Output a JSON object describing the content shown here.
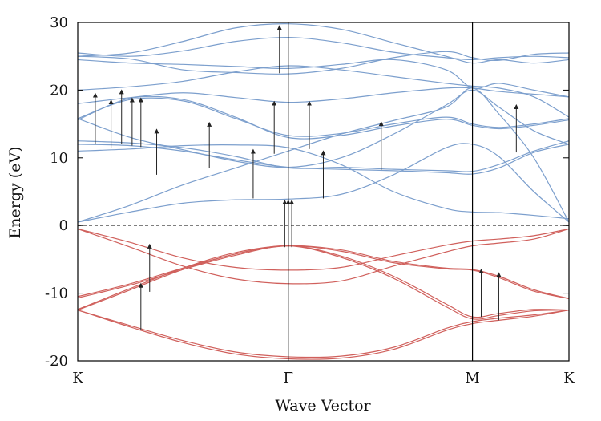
{
  "chart_data": {
    "type": "line",
    "xlabel": "Wave Vector",
    "ylabel": "Energy (eV)",
    "ylim": [
      -20,
      30
    ],
    "yticks": [
      -20,
      -10,
      0,
      10,
      20,
      30
    ],
    "xlim": [
      0,
      2.8
    ],
    "k_points": [
      {
        "label": "K",
        "x": 0
      },
      {
        "label": "Γ",
        "x": 1.2
      },
      {
        "label": "M",
        "x": 2.25
      },
      {
        "label": "K",
        "x": 2.8
      }
    ],
    "fermi_level": 0,
    "grid": false,
    "colors": {
      "conduction": "#7c9fcd",
      "valence": "#d0605c",
      "axis": "#000000",
      "fermi": "#555555",
      "arrow": "#222222"
    },
    "series": [
      {
        "group": "valence",
        "x": [
          0,
          0.3,
          0.6,
          0.9,
          1.2,
          1.5,
          1.8,
          2.1,
          2.25,
          2.4,
          2.6,
          2.8
        ],
        "y": [
          -12.5,
          -14.8,
          -17.0,
          -18.7,
          -19.4,
          -19.3,
          -18.0,
          -15.2,
          -14.2,
          -13.7,
          -13.2,
          -12.5
        ]
      },
      {
        "group": "valence",
        "x": [
          0,
          0.3,
          0.6,
          0.9,
          1.2,
          1.5,
          1.8,
          2.1,
          2.25,
          2.4,
          2.6,
          2.8
        ],
        "y": [
          -12.5,
          -15.0,
          -17.3,
          -19.0,
          -19.7,
          -19.6,
          -18.3,
          -15.5,
          -14.5,
          -14.0,
          -13.4,
          -12.5
        ]
      },
      {
        "group": "valence",
        "x": [
          0,
          0.3,
          0.6,
          0.9,
          1.2,
          1.5,
          1.8,
          2.1,
          2.25,
          2.4,
          2.6,
          2.8
        ],
        "y": [
          -12.5,
          -9.5,
          -6.5,
          -4.2,
          -3.0,
          -3.6,
          -5.3,
          -6.3,
          -6.5,
          -7.5,
          -9.5,
          -10.8
        ]
      },
      {
        "group": "valence",
        "x": [
          0,
          0.3,
          0.6,
          0.9,
          1.2,
          1.5,
          1.8,
          2.1,
          2.25,
          2.4,
          2.6,
          2.8
        ],
        "y": [
          -12.4,
          -9.3,
          -6.3,
          -4.0,
          -3.0,
          -3.8,
          -5.5,
          -6.4,
          -6.6,
          -7.7,
          -9.7,
          -10.8
        ]
      },
      {
        "group": "valence",
        "x": [
          0,
          0.3,
          0.6,
          0.9,
          1.2,
          1.5,
          1.8,
          2.1,
          2.25,
          2.4,
          2.6,
          2.8
        ],
        "y": [
          -10.7,
          -8.8,
          -6.5,
          -4.4,
          -3.0,
          -4.5,
          -7.5,
          -11.6,
          -13.5,
          -13.0,
          -12.4,
          -12.5
        ]
      },
      {
        "group": "valence",
        "x": [
          0,
          0.3,
          0.6,
          0.9,
          1.2,
          1.5,
          1.8,
          2.1,
          2.25,
          2.4,
          2.6,
          2.8
        ],
        "y": [
          -10.5,
          -8.6,
          -6.3,
          -4.2,
          -3.0,
          -4.7,
          -7.8,
          -12.0,
          -13.8,
          -13.3,
          -12.6,
          -12.5
        ]
      },
      {
        "group": "valence",
        "x": [
          0,
          0.3,
          0.6,
          0.9,
          1.2,
          1.5,
          1.8,
          2.1,
          2.25,
          2.4,
          2.6,
          2.8
        ],
        "y": [
          -0.5,
          -2.5,
          -4.8,
          -6.2,
          -6.6,
          -6.2,
          -4.5,
          -2.9,
          -2.3,
          -2.0,
          -1.5,
          -0.5
        ]
      },
      {
        "group": "valence",
        "x": [
          0,
          0.3,
          0.6,
          0.9,
          1.2,
          1.5,
          1.8,
          2.1,
          2.25,
          2.4,
          2.6,
          2.8
        ],
        "y": [
          -0.5,
          -3.2,
          -6.0,
          -7.9,
          -8.6,
          -8.2,
          -6.0,
          -3.9,
          -3.0,
          -2.6,
          -2.0,
          -0.5
        ]
      },
      {
        "group": "conduction",
        "x": [
          0,
          0.3,
          0.6,
          0.9,
          1.2,
          1.5,
          1.8,
          2.1,
          2.25,
          2.4,
          2.6,
          2.8
        ],
        "y": [
          0.5,
          2.0,
          3.3,
          3.8,
          3.9,
          4.6,
          7.5,
          11.5,
          12.0,
          10.2,
          5.0,
          0.5
        ]
      },
      {
        "group": "conduction",
        "x": [
          0,
          0.3,
          0.6,
          0.9,
          1.2,
          1.5,
          1.8,
          2.1,
          2.25,
          2.4,
          2.6,
          2.8
        ],
        "y": [
          0.5,
          3.0,
          6.0,
          8.5,
          11.0,
          13.5,
          15.5,
          17.5,
          20.3,
          16.5,
          10.0,
          0.5
        ]
      },
      {
        "group": "conduction",
        "x": [
          0,
          0.3,
          0.6,
          0.9,
          1.2,
          1.5,
          1.8,
          2.1,
          2.25,
          2.4,
          2.6,
          2.8
        ],
        "y": [
          11.0,
          11.3,
          11.8,
          11.9,
          11.5,
          9.0,
          5.0,
          2.5,
          2.0,
          1.9,
          1.5,
          1.0
        ]
      },
      {
        "group": "conduction",
        "x": [
          0,
          0.3,
          0.6,
          0.9,
          1.2,
          1.5,
          1.8,
          2.1,
          2.25,
          2.4,
          2.6,
          2.8
        ],
        "y": [
          12.0,
          11.8,
          11.0,
          9.7,
          8.6,
          8.3,
          8.1,
          7.8,
          7.6,
          8.5,
          10.8,
          12.0
        ]
      },
      {
        "group": "conduction",
        "x": [
          0,
          0.3,
          0.6,
          0.9,
          1.2,
          1.5,
          1.8,
          2.1,
          2.25,
          2.4,
          2.6,
          2.8
        ],
        "y": [
          12.5,
          12.2,
          11.5,
          10.2,
          8.5,
          8.6,
          8.3,
          8.1,
          8.0,
          9.0,
          11.0,
          12.5
        ]
      },
      {
        "group": "conduction",
        "x": [
          0,
          0.3,
          0.6,
          0.9,
          1.2,
          1.5,
          1.8,
          2.1,
          2.25,
          2.4,
          2.6,
          2.8
        ],
        "y": [
          15.8,
          13.0,
          11.2,
          9.5,
          8.6,
          10.0,
          13.5,
          17.8,
          20.0,
          17.5,
          14.0,
          12.0
        ]
      },
      {
        "group": "conduction",
        "x": [
          0,
          0.3,
          0.6,
          0.9,
          1.2,
          1.5,
          1.8,
          2.1,
          2.25,
          2.4,
          2.6,
          2.8
        ],
        "y": [
          15.8,
          18.6,
          18.4,
          15.8,
          13.3,
          13.6,
          15.0,
          16.0,
          15.0,
          14.5,
          15.0,
          15.8
        ]
      },
      {
        "group": "conduction",
        "x": [
          0,
          0.3,
          0.6,
          0.9,
          1.2,
          1.5,
          1.8,
          2.1,
          2.25,
          2.4,
          2.6,
          2.8
        ],
        "y": [
          15.6,
          18.8,
          18.6,
          16.0,
          13.0,
          13.3,
          14.7,
          15.7,
          14.8,
          14.3,
          14.8,
          15.6
        ]
      },
      {
        "group": "conduction",
        "x": [
          0,
          0.3,
          0.6,
          0.9,
          1.2,
          1.5,
          1.8,
          2.1,
          2.25,
          2.4,
          2.6,
          2.8
        ],
        "y": [
          18.0,
          18.9,
          19.6,
          18.9,
          18.2,
          18.7,
          19.6,
          20.3,
          20.3,
          19.8,
          19.4,
          19.0
        ]
      },
      {
        "group": "conduction",
        "x": [
          0,
          0.3,
          0.6,
          0.9,
          1.2,
          1.5,
          1.8,
          2.1,
          2.25,
          2.4,
          2.6,
          2.8
        ],
        "y": [
          20.0,
          20.5,
          21.3,
          22.7,
          23.6,
          23.0,
          22.0,
          21.0,
          20.6,
          20.3,
          19.0,
          16.0
        ]
      },
      {
        "group": "conduction",
        "x": [
          0,
          0.3,
          0.6,
          0.9,
          1.2,
          1.5,
          1.8,
          2.1,
          2.25,
          2.4,
          2.6,
          2.8
        ],
        "y": [
          24.5,
          24.0,
          23.8,
          23.5,
          23.2,
          23.8,
          24.5,
          23.0,
          20.3,
          21.0,
          20.0,
          19.0
        ]
      },
      {
        "group": "conduction",
        "x": [
          0,
          0.3,
          0.6,
          0.9,
          1.2,
          1.5,
          1.8,
          2.1,
          2.25,
          2.4,
          2.6,
          2.8
        ],
        "y": [
          25.0,
          24.6,
          23.0,
          22.6,
          22.4,
          23.2,
          24.8,
          25.7,
          24.8,
          24.4,
          25.3,
          25.5
        ]
      },
      {
        "group": "conduction",
        "x": [
          0,
          0.3,
          0.6,
          0.9,
          1.2,
          1.5,
          1.8,
          2.1,
          2.25,
          2.4,
          2.6,
          2.8
        ],
        "y": [
          25.5,
          25.0,
          25.8,
          27.2,
          27.8,
          27.0,
          25.6,
          24.8,
          24.5,
          24.8,
          25.0,
          24.8
        ]
      },
      {
        "group": "conduction",
        "x": [
          0,
          0.3,
          0.6,
          0.9,
          1.2,
          1.5,
          1.8,
          2.1,
          2.25,
          2.4,
          2.6,
          2.8
        ],
        "y": [
          25.0,
          25.5,
          27.2,
          29.2,
          29.8,
          29.0,
          27.0,
          25.0,
          24.0,
          24.5,
          24.0,
          24.5
        ]
      }
    ],
    "transitions": [
      {
        "x": 0.1,
        "from": 12.0,
        "to": 19.5
      },
      {
        "x": 0.19,
        "from": 11.5,
        "to": 18.5
      },
      {
        "x": 0.25,
        "from": 12.0,
        "to": 20.0
      },
      {
        "x": 0.31,
        "from": 11.8,
        "to": 18.8
      },
      {
        "x": 0.36,
        "from": 11.6,
        "to": 18.8
      },
      {
        "x": 0.45,
        "from": 7.5,
        "to": 14.2
      },
      {
        "x": 0.75,
        "from": 8.5,
        "to": 15.2
      },
      {
        "x": 1.0,
        "from": 4.0,
        "to": 11.2
      },
      {
        "x": 1.12,
        "from": 10.6,
        "to": 18.3
      },
      {
        "x": 1.15,
        "from": 22.5,
        "to": 29.5
      },
      {
        "x": 1.18,
        "from": -3.2,
        "to": 3.7
      },
      {
        "x": 1.2,
        "from": -3.2,
        "to": 3.7
      },
      {
        "x": 1.22,
        "from": -3.2,
        "to": 3.7
      },
      {
        "x": 1.32,
        "from": 11.3,
        "to": 18.3
      },
      {
        "x": 1.4,
        "from": 4.0,
        "to": 11.0
      },
      {
        "x": 1.73,
        "from": 8.2,
        "to": 15.3
      },
      {
        "x": 2.5,
        "from": 10.8,
        "to": 17.8
      },
      {
        "x": 0.36,
        "from": -15.5,
        "to": -8.6
      },
      {
        "x": 0.41,
        "from": -9.8,
        "to": -2.8
      },
      {
        "x": 2.3,
        "from": -13.5,
        "to": -6.5
      },
      {
        "x": 2.4,
        "from": -14.0,
        "to": -7.0
      }
    ]
  }
}
